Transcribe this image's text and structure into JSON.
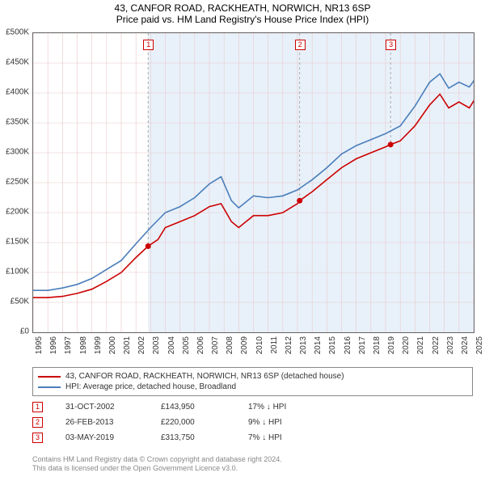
{
  "title_line1": "43, CANFOR ROAD, RACKHEATH, NORWICH, NR13 6SP",
  "title_line2": "Price paid vs. HM Land Registry's House Price Index (HPI)",
  "chart": {
    "type": "line",
    "background_color": "#ffffff",
    "grid_color": "#e8c8c8",
    "grid_stroke": 0.6,
    "y": {
      "min": 0,
      "max": 500000,
      "step": 50000,
      "labels": [
        "£0",
        "£50K",
        "£100K",
        "£150K",
        "£200K",
        "£250K",
        "£300K",
        "£350K",
        "£400K",
        "£450K",
        "£500K"
      ],
      "label_fontsize": 10,
      "label_color": "#333333"
    },
    "x": {
      "min": 1995,
      "max": 2025,
      "step": 1,
      "labels": [
        "1995",
        "1996",
        "1997",
        "1998",
        "1999",
        "2000",
        "2001",
        "2002",
        "2003",
        "2004",
        "2005",
        "2006",
        "2007",
        "2008",
        "2009",
        "2010",
        "2011",
        "2012",
        "2013",
        "2014",
        "2015",
        "2016",
        "2017",
        "2018",
        "2019",
        "2020",
        "2021",
        "2022",
        "2023",
        "2024",
        "2025"
      ],
      "label_fontsize": 10,
      "label_color": "#333333",
      "rotation": -90
    },
    "band": {
      "start": 2002.83,
      "end": 2025.5,
      "fill": "#d6e6f5",
      "opacity": 0.55
    },
    "series": [
      {
        "name": "price_paid",
        "color": "#cc0000",
        "stroke_width": 1.6,
        "points": [
          [
            1995.0,
            58000
          ],
          [
            1996.0,
            58000
          ],
          [
            1997.0,
            60000
          ],
          [
            1998.0,
            65000
          ],
          [
            1999.0,
            72000
          ],
          [
            2000.0,
            85000
          ],
          [
            2001.0,
            100000
          ],
          [
            2002.0,
            125000
          ],
          [
            2002.83,
            143950
          ],
          [
            2003.5,
            155000
          ],
          [
            2004.0,
            175000
          ],
          [
            2005.0,
            185000
          ],
          [
            2006.0,
            195000
          ],
          [
            2007.0,
            210000
          ],
          [
            2007.8,
            215000
          ],
          [
            2008.5,
            185000
          ],
          [
            2009.0,
            175000
          ],
          [
            2009.5,
            185000
          ],
          [
            2010.0,
            195000
          ],
          [
            2011.0,
            195000
          ],
          [
            2012.0,
            200000
          ],
          [
            2013.0,
            215000
          ],
          [
            2013.15,
            220000
          ],
          [
            2014.0,
            235000
          ],
          [
            2015.0,
            255000
          ],
          [
            2016.0,
            275000
          ],
          [
            2017.0,
            290000
          ],
          [
            2018.0,
            300000
          ],
          [
            2019.0,
            310000
          ],
          [
            2019.34,
            313750
          ],
          [
            2020.0,
            320000
          ],
          [
            2021.0,
            345000
          ],
          [
            2022.0,
            380000
          ],
          [
            2022.7,
            398000
          ],
          [
            2023.3,
            375000
          ],
          [
            2024.0,
            385000
          ],
          [
            2024.7,
            375000
          ],
          [
            2025.3,
            398000
          ]
        ]
      },
      {
        "name": "hpi",
        "color": "#4a7ebb",
        "stroke_width": 1.6,
        "points": [
          [
            1995.0,
            70000
          ],
          [
            1996.0,
            70000
          ],
          [
            1997.0,
            74000
          ],
          [
            1998.0,
            80000
          ],
          [
            1999.0,
            90000
          ],
          [
            2000.0,
            105000
          ],
          [
            2001.0,
            120000
          ],
          [
            2002.0,
            148000
          ],
          [
            2003.0,
            175000
          ],
          [
            2004.0,
            200000
          ],
          [
            2005.0,
            210000
          ],
          [
            2006.0,
            225000
          ],
          [
            2007.0,
            248000
          ],
          [
            2007.8,
            260000
          ],
          [
            2008.5,
            220000
          ],
          [
            2009.0,
            208000
          ],
          [
            2009.5,
            218000
          ],
          [
            2010.0,
            228000
          ],
          [
            2011.0,
            225000
          ],
          [
            2012.0,
            228000
          ],
          [
            2013.0,
            238000
          ],
          [
            2014.0,
            255000
          ],
          [
            2015.0,
            275000
          ],
          [
            2016.0,
            298000
          ],
          [
            2017.0,
            312000
          ],
          [
            2018.0,
            322000
          ],
          [
            2019.0,
            332000
          ],
          [
            2020.0,
            345000
          ],
          [
            2021.0,
            378000
          ],
          [
            2022.0,
            418000
          ],
          [
            2022.7,
            432000
          ],
          [
            2023.3,
            408000
          ],
          [
            2024.0,
            418000
          ],
          [
            2024.7,
            410000
          ],
          [
            2025.3,
            430000
          ]
        ]
      }
    ],
    "sale_markers": [
      {
        "n": "1",
        "x": 2002.83,
        "y": 143950,
        "dot_color": "#cc0000"
      },
      {
        "n": "2",
        "x": 2013.15,
        "y": 220000,
        "dot_color": "#cc0000"
      },
      {
        "n": "3",
        "x": 2019.34,
        "y": 313750,
        "dot_color": "#cc0000"
      }
    ],
    "marker_box": {
      "border": "#cc0000",
      "text": "#cc0000",
      "bg": "#ffffff",
      "size": 13
    }
  },
  "legend": {
    "border_color": "#888888",
    "items": [
      {
        "color": "#cc0000",
        "label": "43, CANFOR ROAD, RACKHEATH, NORWICH, NR13 6SP (detached house)"
      },
      {
        "color": "#4a7ebb",
        "label": "HPI: Average price, detached house, Broadland"
      }
    ]
  },
  "sales": [
    {
      "n": "1",
      "date": "31-OCT-2002",
      "price": "£143,950",
      "diff": "17% ↓ HPI"
    },
    {
      "n": "2",
      "date": "26-FEB-2013",
      "price": "£220,000",
      "diff": "9% ↓ HPI"
    },
    {
      "n": "3",
      "date": "03-MAY-2019",
      "price": "£313,750",
      "diff": "7% ↓ HPI"
    }
  ],
  "footer_line1": "Contains HM Land Registry data © Crown copyright and database right 2024.",
  "footer_line2": "This data is licensed under the Open Government Licence v3.0."
}
